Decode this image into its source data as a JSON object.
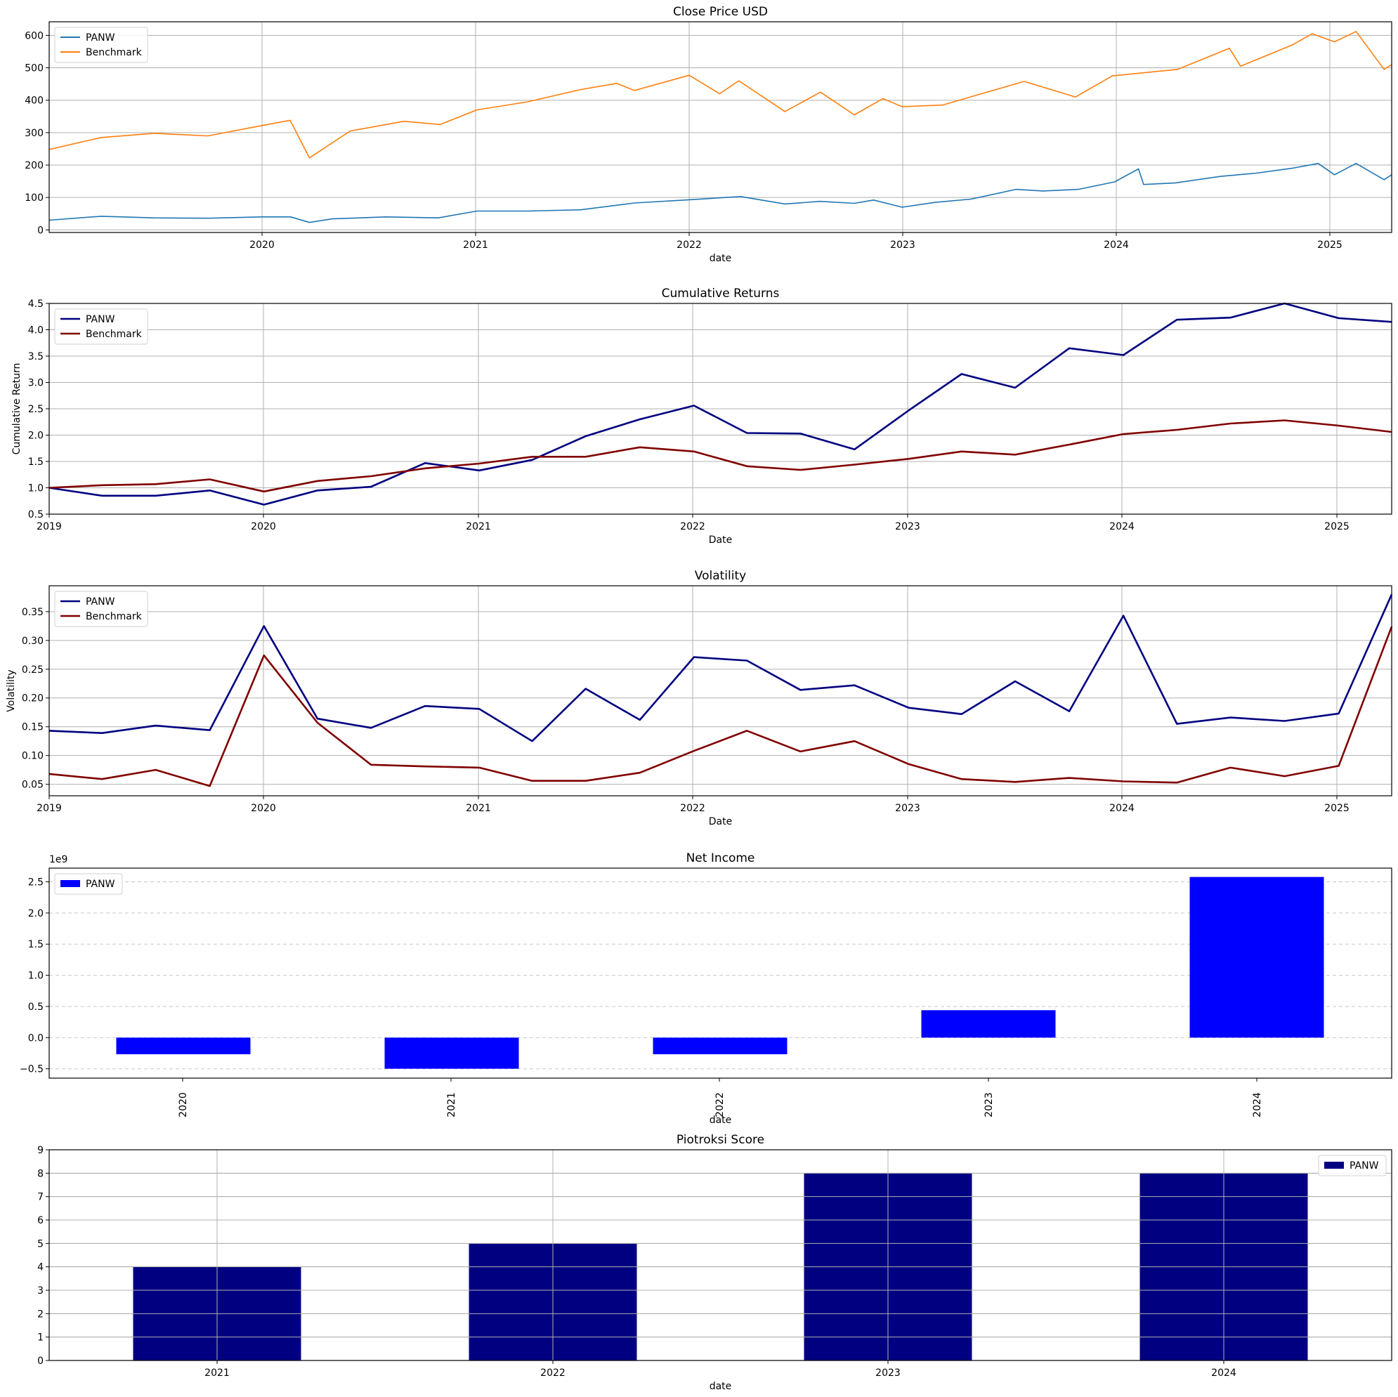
{
  "charts": [
    {
      "type": "line",
      "title": "Close Price USD",
      "xlabel": "date",
      "ylabel": "",
      "x_ticks": [
        "2020",
        "2021",
        "2022",
        "2023",
        "2024",
        "2025"
      ],
      "y_ticks": [
        "0",
        "100",
        "200",
        "300",
        "400",
        "500",
        "600"
      ],
      "legend": [
        "PANW",
        "Benchmark"
      ]
    },
    {
      "type": "line",
      "title": "Cumulative Returns",
      "xlabel": "Date",
      "ylabel": "Cumulative Return",
      "x_ticks": [
        "2019",
        "2020",
        "2021",
        "2022",
        "2023",
        "2024",
        "2025"
      ],
      "y_ticks": [
        "0.5",
        "1.0",
        "1.5",
        "2.0",
        "2.5",
        "3.0",
        "3.5",
        "4.0",
        "4.5"
      ],
      "legend": [
        "PANW",
        "Benchmark"
      ]
    },
    {
      "type": "line",
      "title": "Volatility",
      "xlabel": "Date",
      "ylabel": "Volatility",
      "x_ticks": [
        "2019",
        "2020",
        "2021",
        "2022",
        "2023",
        "2024",
        "2025"
      ],
      "y_ticks": [
        "0.05",
        "0.10",
        "0.15",
        "0.20",
        "0.25",
        "0.30",
        "0.35"
      ],
      "legend": [
        "PANW",
        "Benchmark"
      ]
    },
    {
      "type": "bar",
      "title": "Net Income",
      "xlabel": "date",
      "ylabel": "",
      "offset_label": "1e9",
      "x_ticks": [
        "2020",
        "2021",
        "2022",
        "2023",
        "2024"
      ],
      "y_ticks": [
        "−0.5",
        "0.0",
        "0.5",
        "1.0",
        "1.5",
        "2.0",
        "2.5"
      ],
      "legend": [
        "PANW"
      ]
    },
    {
      "type": "bar",
      "title": "Piotroksi Score",
      "xlabel": "date",
      "ylabel": "",
      "x_ticks": [
        "2021",
        "2022",
        "2023",
        "2024"
      ],
      "y_ticks": [
        "0",
        "1",
        "2",
        "3",
        "4",
        "5",
        "6",
        "7",
        "8",
        "9"
      ],
      "legend": [
        "PANW"
      ]
    }
  ],
  "chart_data": [
    {
      "type": "line",
      "title": "Close Price USD",
      "xlabel": "date",
      "xlim": [
        "2019-01-02",
        "2025-04-21"
      ],
      "ylim": [
        -8,
        642
      ],
      "grid": true,
      "legend_position": "upper-left",
      "series": [
        {
          "name": "PANW",
          "color": "#1f77b4",
          "x": [
            "2019-01-02",
            "2019-04-01",
            "2019-07-01",
            "2019-10-01",
            "2020-01-02",
            "2020-02-20",
            "2020-03-23",
            "2020-05-01",
            "2020-08-01",
            "2020-10-30",
            "2021-01-04",
            "2021-04-01",
            "2021-07-01",
            "2021-10-01",
            "2022-01-03",
            "2022-04-01",
            "2022-06-16",
            "2022-08-15",
            "2022-10-13",
            "2022-11-15",
            "2023-01-03",
            "2023-03-01",
            "2023-05-01",
            "2023-07-17",
            "2023-09-01",
            "2023-11-01",
            "2024-01-02",
            "2024-02-12",
            "2024-02-21",
            "2024-04-15",
            "2024-07-01",
            "2024-09-01",
            "2024-11-01",
            "2024-12-16",
            "2025-01-13",
            "2025-02-19",
            "2025-04-08",
            "2025-04-21"
          ],
          "y": [
            30,
            42,
            37,
            36,
            40,
            40,
            23,
            34,
            40,
            37,
            58,
            58,
            62,
            83,
            93,
            103,
            80,
            88,
            82,
            92,
            70,
            85,
            95,
            125,
            120,
            125,
            148,
            188,
            140,
            145,
            165,
            175,
            190,
            205,
            170,
            205,
            155,
            170
          ]
        },
        {
          "name": "Benchmark",
          "color": "#ff7f0e",
          "x": [
            "2019-01-02",
            "2019-04-01",
            "2019-07-01",
            "2019-10-01",
            "2020-01-02",
            "2020-02-19",
            "2020-03-23",
            "2020-06-01",
            "2020-09-01",
            "2020-11-02",
            "2021-01-04",
            "2021-04-01",
            "2021-07-01",
            "2021-09-01",
            "2021-10-01",
            "2022-01-03",
            "2022-02-24",
            "2022-03-29",
            "2022-06-16",
            "2022-08-16",
            "2022-10-13",
            "2022-12-01",
            "2023-01-03",
            "2023-03-13",
            "2023-07-31",
            "2023-10-27",
            "2023-12-29",
            "2024-04-19",
            "2024-07-17",
            "2024-08-05",
            "2024-11-01",
            "2024-12-06",
            "2025-01-13",
            "2025-02-19",
            "2025-04-08",
            "2025-04-21"
          ],
          "y": [
            248,
            285,
            298,
            290,
            322,
            338,
            222,
            305,
            335,
            325,
            370,
            395,
            433,
            452,
            430,
            477,
            420,
            460,
            365,
            425,
            355,
            405,
            380,
            385,
            458,
            410,
            475,
            495,
            560,
            505,
            570,
            605,
            580,
            612,
            495,
            510
          ]
        }
      ]
    },
    {
      "type": "line",
      "title": "Cumulative Returns",
      "xlabel": "Date",
      "ylabel": "Cumulative Return",
      "xlim": [
        "2019-01-01",
        "2025-04-01"
      ],
      "ylim": [
        0.5,
        4.5
      ],
      "grid": true,
      "legend_position": "upper-left",
      "x": [
        "2019-01-01",
        "2019-04-01",
        "2019-07-01",
        "2019-10-01",
        "2020-01-01",
        "2020-04-01",
        "2020-07-01",
        "2020-10-01",
        "2021-01-01",
        "2021-04-01",
        "2021-07-01",
        "2021-10-01",
        "2022-01-01",
        "2022-04-01",
        "2022-07-01",
        "2022-10-01",
        "2023-01-01",
        "2023-04-01",
        "2023-07-01",
        "2023-10-01",
        "2024-01-01",
        "2024-04-01",
        "2024-07-01",
        "2024-10-01",
        "2025-01-01",
        "2025-04-01"
      ],
      "series": [
        {
          "name": "PANW",
          "color": "#000080",
          "values": [
            1.0,
            0.85,
            0.85,
            0.95,
            0.68,
            0.95,
            1.02,
            1.47,
            1.33,
            1.53,
            1.98,
            2.3,
            2.56,
            2.04,
            2.03,
            1.73,
            2.47,
            3.16,
            2.9,
            3.65,
            3.52,
            4.19,
            4.23,
            4.5,
            4.22,
            4.15
          ]
        },
        {
          "name": "Benchmark",
          "color": "#800000",
          "values": [
            1.0,
            1.05,
            1.07,
            1.16,
            0.93,
            1.13,
            1.22,
            1.37,
            1.46,
            1.59,
            1.59,
            1.77,
            1.69,
            1.41,
            1.34,
            1.44,
            1.55,
            1.69,
            1.63,
            1.82,
            2.02,
            2.1,
            2.22,
            2.28,
            2.18,
            2.06
          ]
        }
      ]
    },
    {
      "type": "line",
      "title": "Volatility",
      "xlabel": "Date",
      "ylabel": "Volatility",
      "xlim": [
        "2019-01-01",
        "2025-04-01"
      ],
      "ylim": [
        0.03,
        0.395
      ],
      "grid": true,
      "legend_position": "upper-left",
      "x": [
        "2019-01-01",
        "2019-04-01",
        "2019-07-01",
        "2019-10-01",
        "2020-01-01",
        "2020-04-01",
        "2020-07-01",
        "2020-10-01",
        "2021-01-01",
        "2021-04-01",
        "2021-07-01",
        "2021-10-01",
        "2022-01-01",
        "2022-04-01",
        "2022-07-01",
        "2022-10-01",
        "2023-01-01",
        "2023-04-01",
        "2023-07-01",
        "2023-10-01",
        "2024-01-01",
        "2024-04-01",
        "2024-07-01",
        "2024-10-01",
        "2025-01-01",
        "2025-04-01"
      ],
      "series": [
        {
          "name": "PANW",
          "color": "#000080",
          "values": [
            0.143,
            0.139,
            0.152,
            0.144,
            0.325,
            0.164,
            0.148,
            0.186,
            0.181,
            0.125,
            0.216,
            0.162,
            0.271,
            0.265,
            0.214,
            0.222,
            0.183,
            0.172,
            0.229,
            0.177,
            0.343,
            0.155,
            0.166,
            0.16,
            0.173,
            0.38
          ]
        },
        {
          "name": "Benchmark",
          "color": "#800000",
          "values": [
            0.068,
            0.059,
            0.075,
            0.047,
            0.274,
            0.157,
            0.084,
            0.081,
            0.079,
            0.056,
            0.056,
            0.07,
            0.108,
            0.143,
            0.107,
            0.125,
            0.085,
            0.059,
            0.054,
            0.061,
            0.055,
            0.053,
            0.079,
            0.064,
            0.082,
            0.324
          ]
        }
      ]
    },
    {
      "type": "bar",
      "title": "Net Income",
      "xlabel": "date",
      "ylim": [
        -650000000.0,
        2720000000.0
      ],
      "grid": "y-dashed",
      "legend_position": "upper-left",
      "categories": [
        "2020",
        "2021",
        "2022",
        "2023",
        "2024"
      ],
      "series": [
        {
          "name": "PANW",
          "color": "#0000ff",
          "values": [
            -267000000.0,
            -499000000.0,
            -267000000.0,
            440000000.0,
            2578000000.0
          ]
        }
      ]
    },
    {
      "type": "bar",
      "title": "Piotroksi Score",
      "xlabel": "date",
      "ylim": [
        0,
        9
      ],
      "grid": true,
      "legend_position": "upper-right",
      "categories": [
        "2021",
        "2022",
        "2023",
        "2024"
      ],
      "series": [
        {
          "name": "PANW",
          "color": "#000080",
          "values": [
            4,
            5,
            8,
            8
          ]
        }
      ]
    }
  ]
}
